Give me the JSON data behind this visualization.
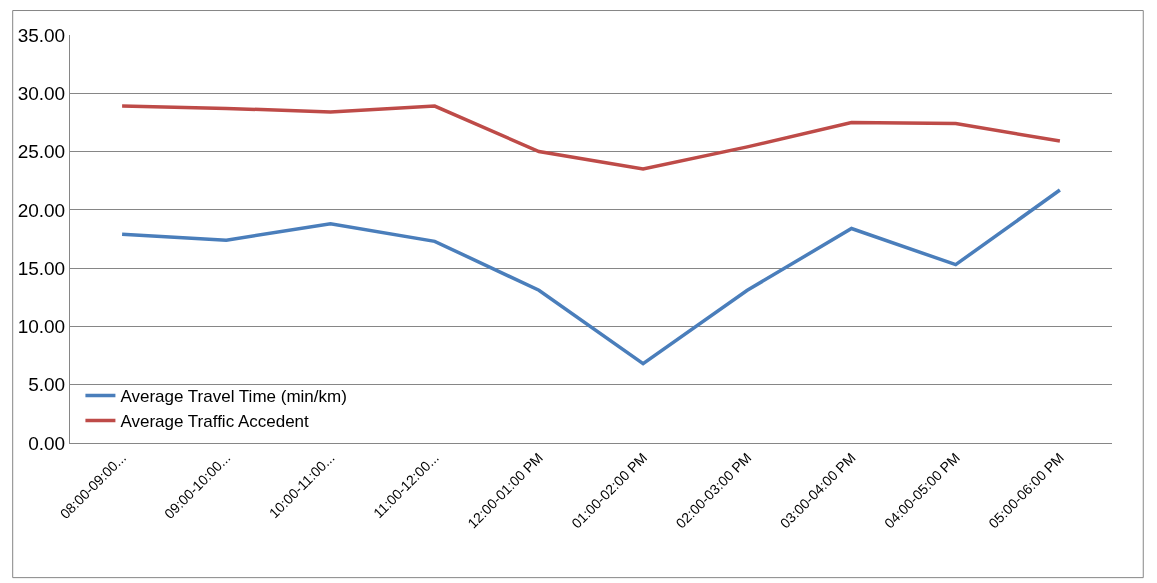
{
  "chart_data": {
    "type": "line",
    "categories": [
      "08:00-09:00...",
      "09:00-10:00...",
      "10:00-11:00...",
      "11:00-12:00...",
      "12:00-01:00 PM",
      "01:00-02:00 PM",
      "02:00-03:00 PM",
      "03:00-04:00 PM",
      "04:00-05:00 PM",
      "05:00-06:00 PM"
    ],
    "series": [
      {
        "name": "Average Travel Time (min/km)",
        "color": "#4a7ebb",
        "values": [
          17.9,
          17.4,
          18.8,
          17.3,
          13.1,
          6.8,
          13.1,
          18.4,
          15.3,
          21.7
        ]
      },
      {
        "name": "Average Traffic Accedent",
        "color": "#be4b48",
        "values": [
          28.9,
          28.7,
          28.4,
          28.9,
          25.0,
          23.5,
          25.4,
          27.5,
          27.4,
          25.9
        ]
      }
    ],
    "ylim": [
      0,
      35
    ],
    "yticks": [
      {
        "value": 0,
        "label": "0.00"
      },
      {
        "value": 5,
        "label": "5.00"
      },
      {
        "value": 10,
        "label": "10.00"
      },
      {
        "value": 15,
        "label": "15.00"
      },
      {
        "value": 20,
        "label": "20.00"
      },
      {
        "value": 25,
        "label": "25.00"
      },
      {
        "value": 30,
        "label": "30.00"
      },
      {
        "value": 35,
        "label": "35.00"
      }
    ],
    "grid": "y",
    "legend": "bottom left",
    "marker": "none",
    "line_style": "solid"
  }
}
